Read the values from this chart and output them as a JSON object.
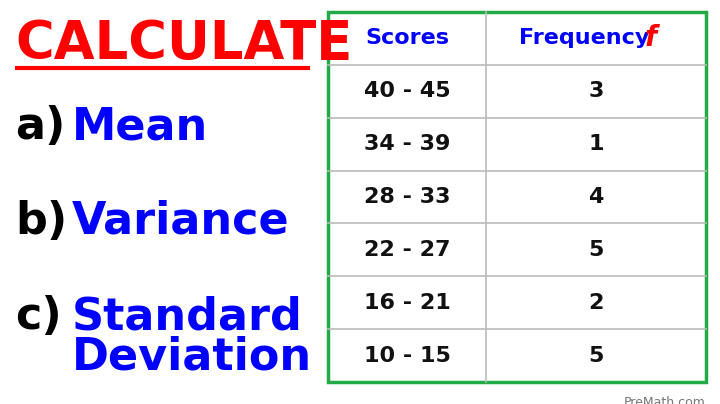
{
  "bg_color": "#ffffff",
  "title_text": "CALCULATE",
  "title_color": "#ff0000",
  "item_label_color": "#000000",
  "item_text_color": "#0000ff",
  "table_header_color": "#0000ff",
  "frequency_f_color": "#ff0000",
  "table_rows": [
    [
      "40 - 45",
      "3"
    ],
    [
      "34 - 39",
      "1"
    ],
    [
      "28 - 33",
      "4"
    ],
    [
      "22 - 27",
      "5"
    ],
    [
      "16 - 21",
      "2"
    ],
    [
      "10 - 15",
      "5"
    ]
  ],
  "table_border_color": "#22aa44",
  "table_line_color": "#bbbbbb",
  "table_text_color": "#111111",
  "watermark": "PreMath.com",
  "watermark_color": "#777777",
  "fig_width": 7.2,
  "fig_height": 4.04,
  "dpi": 100
}
